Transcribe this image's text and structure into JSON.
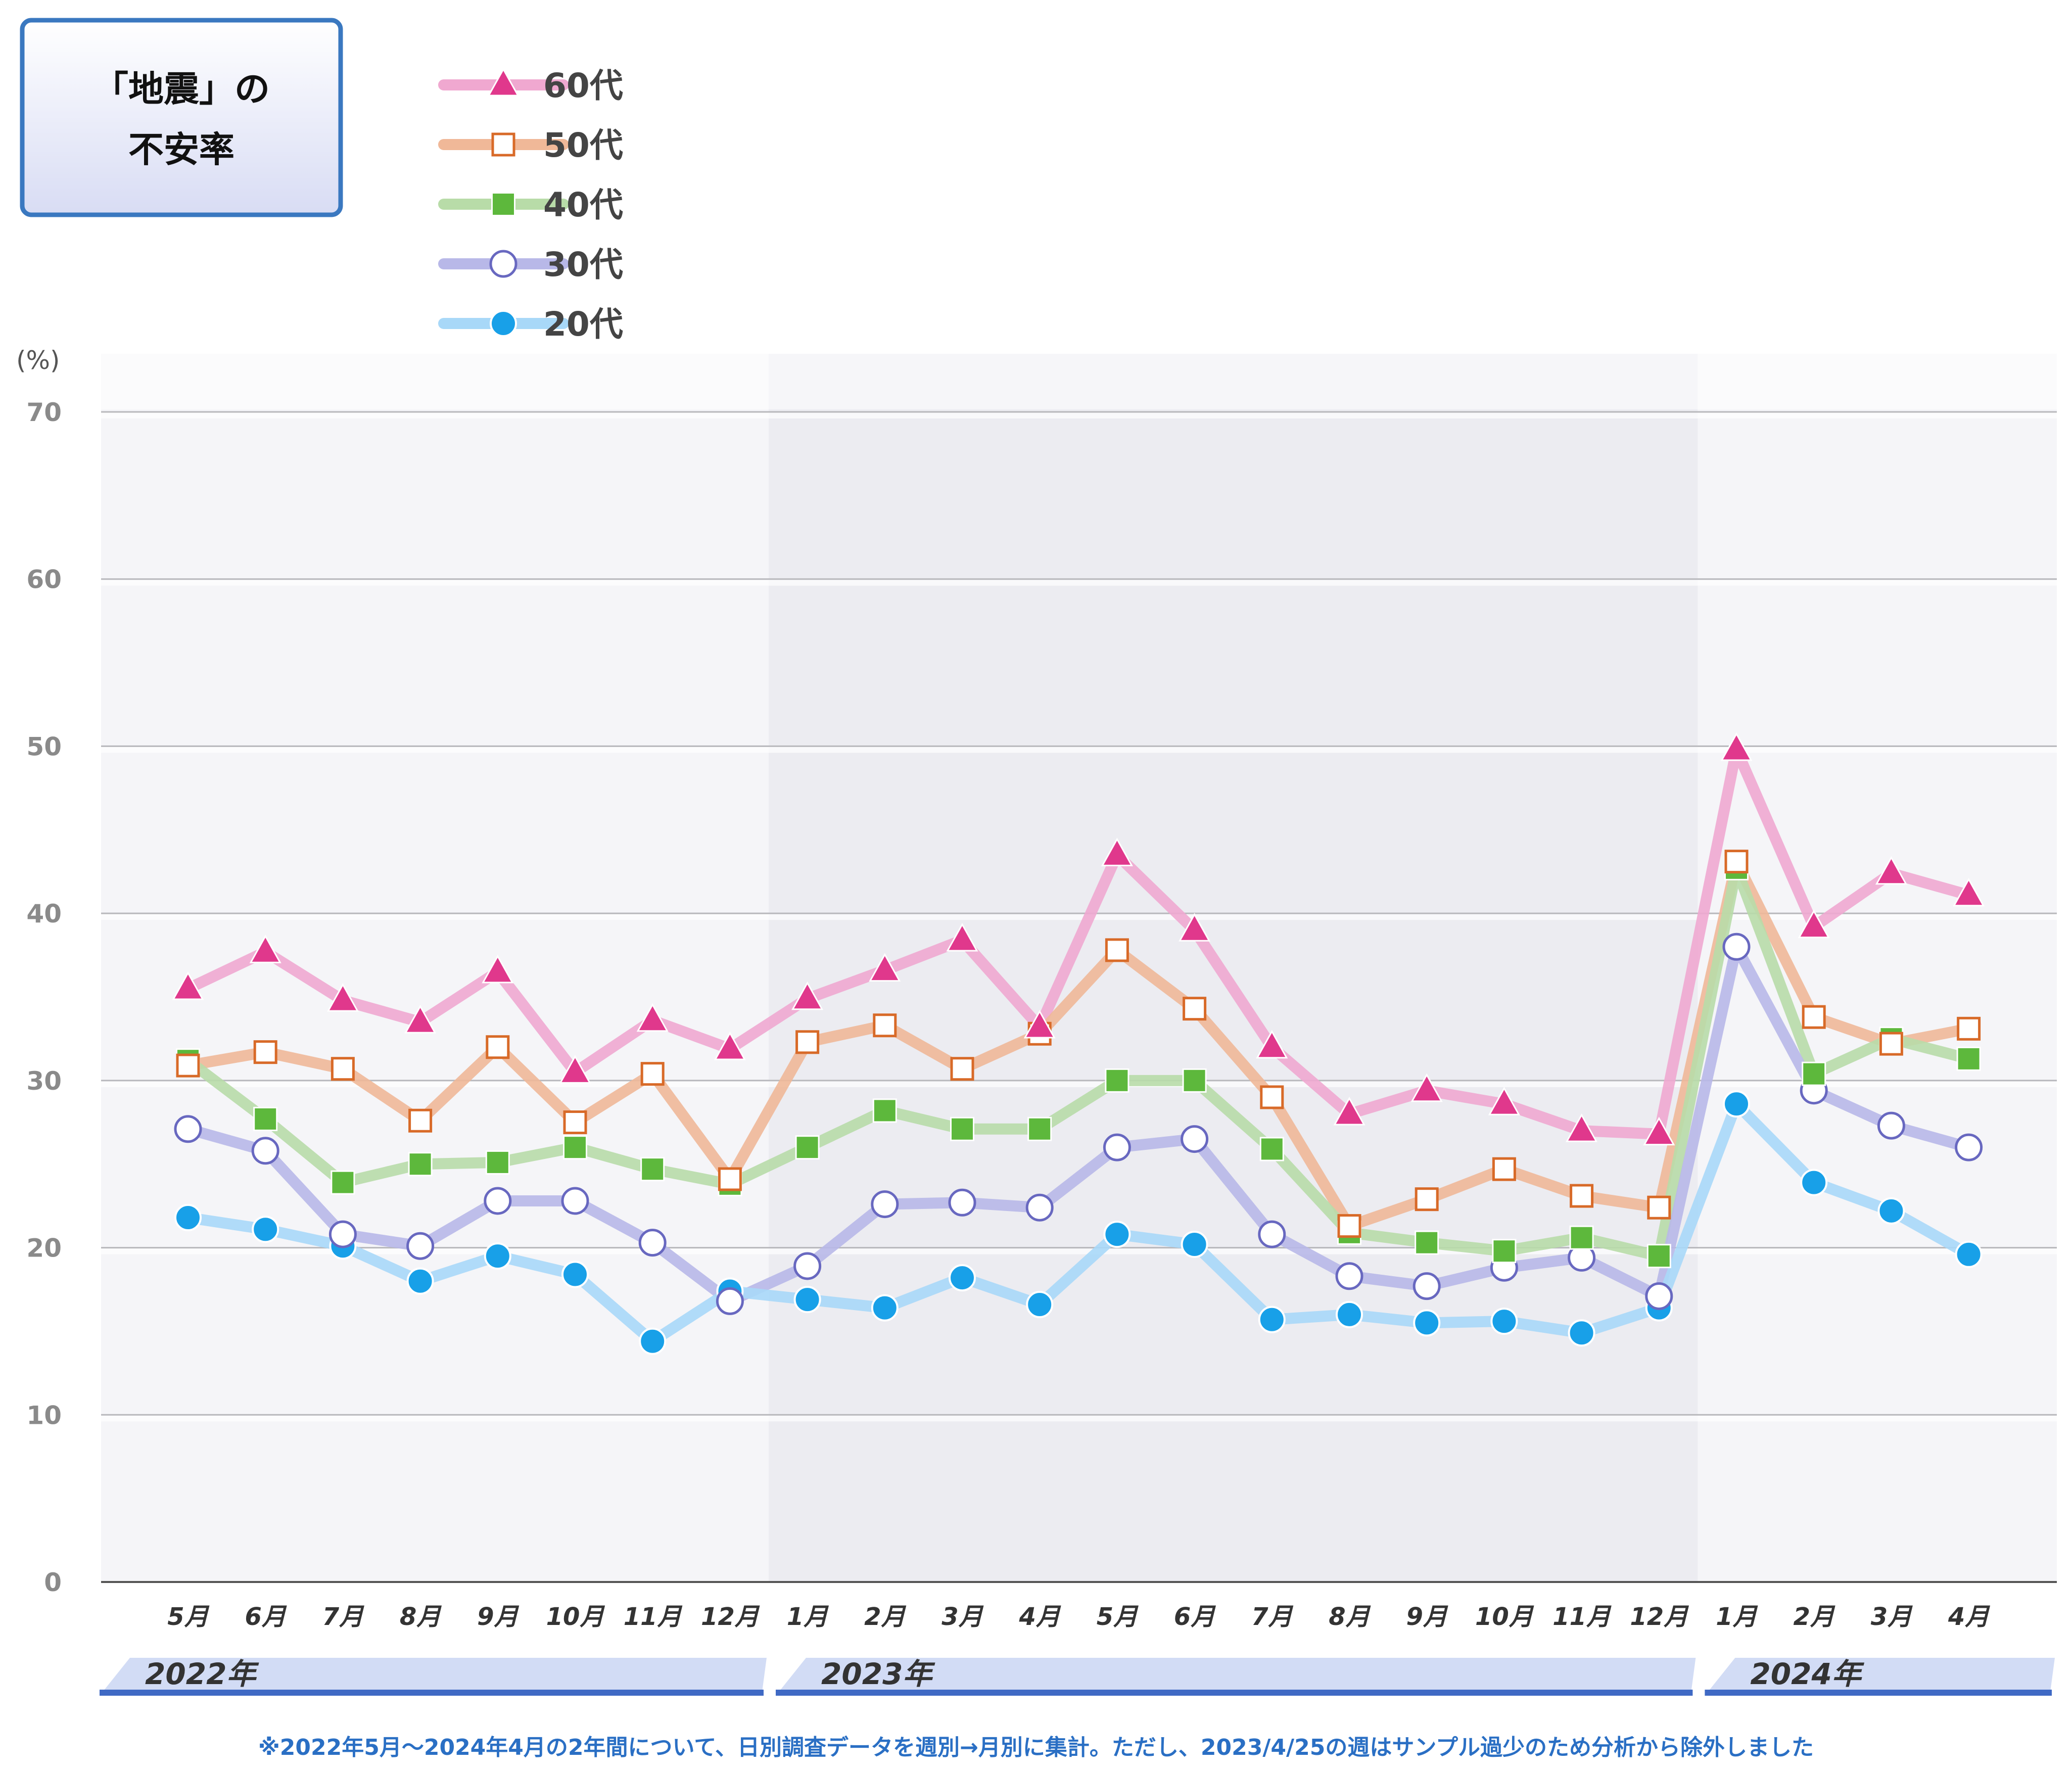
{
  "title_lines": [
    "「地震」の",
    "不安率"
  ],
  "unit_label": "(%)",
  "footnote": "※2022年5月～2024年4月の2年間について、日別調査データを週別→月別に集計。ただし、2023/4/25の週はサンプル過少のため分析から除外しました",
  "chart_data": {
    "type": "line",
    "title": "「地震」の不安率",
    "ylabel": "(%)",
    "ylim": [
      0,
      70
    ],
    "yticks": [
      0,
      10,
      20,
      30,
      40,
      50,
      60,
      70
    ],
    "categories": [
      "5月",
      "6月",
      "7月",
      "8月",
      "9月",
      "10月",
      "11月",
      "12月",
      "1月",
      "2月",
      "3月",
      "4月",
      "5月",
      "6月",
      "7月",
      "8月",
      "9月",
      "10月",
      "11月",
      "12月",
      "1月",
      "2月",
      "3月",
      "4月"
    ],
    "year_groups": [
      {
        "label": "2022年",
        "start": 0,
        "end": 7
      },
      {
        "label": "2023年",
        "start": 8,
        "end": 19
      },
      {
        "label": "2024年",
        "start": 20,
        "end": 23
      }
    ],
    "legend_position": "top-left",
    "series": [
      {
        "name": "60代",
        "color": "#f0a8d0",
        "marker_color": "#e0388c",
        "marker": "triangle",
        "values": [
          35.5,
          37.7,
          34.8,
          33.5,
          36.5,
          30.5,
          33.6,
          31.9,
          34.9,
          36.6,
          38.4,
          33.2,
          43.5,
          39.0,
          32.0,
          28.0,
          29.4,
          28.6,
          27.0,
          26.8,
          49.8,
          39.2,
          42.4,
          41.1
        ]
      },
      {
        "name": "50代",
        "color": "#f0b898",
        "marker_color": "#d86a28",
        "marker": "square-open",
        "values": [
          30.9,
          31.7,
          30.7,
          27.6,
          32.0,
          27.5,
          30.4,
          24.1,
          32.3,
          33.3,
          30.7,
          32.8,
          37.8,
          34.3,
          29.0,
          21.3,
          22.9,
          24.7,
          23.1,
          22.4,
          43.1,
          33.8,
          32.2,
          33.1
        ]
      },
      {
        "name": "40代",
        "color": "#b8dca8",
        "marker_color": "#5db83c",
        "marker": "square",
        "values": [
          31.2,
          27.7,
          23.9,
          25.0,
          25.1,
          26.0,
          24.7,
          23.8,
          26.0,
          28.2,
          27.1,
          27.1,
          30.0,
          30.0,
          25.9,
          20.9,
          20.3,
          19.8,
          20.6,
          19.5,
          42.7,
          30.4,
          32.5,
          31.3
        ]
      },
      {
        "name": "30代",
        "color": "#b8b8e8",
        "marker_color": "#6868c0",
        "marker": "circle-open",
        "values": [
          27.1,
          25.8,
          20.8,
          20.1,
          22.8,
          22.8,
          20.3,
          16.8,
          18.9,
          22.6,
          22.7,
          22.4,
          26.0,
          26.5,
          20.8,
          18.3,
          17.7,
          18.8,
          19.4,
          17.1,
          38.0,
          29.4,
          27.3,
          26.0
        ]
      },
      {
        "name": "20代",
        "color": "#a8d8f8",
        "marker_color": "#18a0e8",
        "marker": "circle",
        "values": [
          21.8,
          21.1,
          20.1,
          18.0,
          19.5,
          18.4,
          14.4,
          17.4,
          16.9,
          16.4,
          18.2,
          16.6,
          20.8,
          20.2,
          15.7,
          16.0,
          15.5,
          15.6,
          14.9,
          16.4,
          28.6,
          23.9,
          22.2,
          19.6
        ]
      }
    ]
  }
}
